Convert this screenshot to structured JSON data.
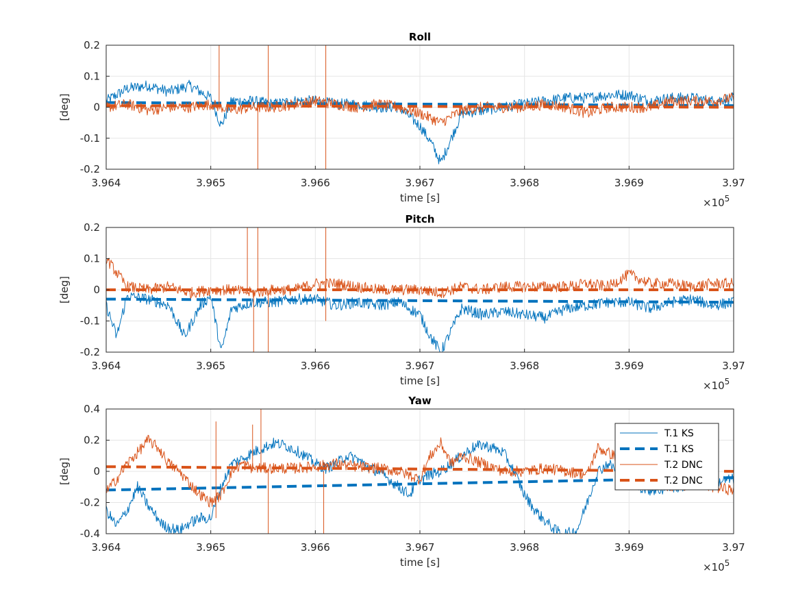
{
  "chart_data": [
    {
      "type": "line",
      "title": "Roll",
      "xlabel": "time [s]",
      "ylabel": "[deg]",
      "xlim": [
        396400,
        397000
      ],
      "ylim": [
        -0.2,
        0.2
      ],
      "x_exponent_label": "×10",
      "x_exponent_power": "5",
      "xticks": [
        396400,
        396500,
        396600,
        396700,
        396800,
        396900,
        397000
      ],
      "xtick_labels": [
        "3.964",
        "3.965",
        "3.966",
        "3.967",
        "3.968",
        "3.969",
        "3.97"
      ],
      "yticks": [
        -0.2,
        -0.1,
        0,
        0.1,
        0.2
      ],
      "ytick_labels": [
        "-0.2",
        "-0.1",
        "0",
        "0.1",
        "0.2"
      ],
      "grid": true,
      "series": [
        {
          "name": "T.1 KS",
          "style": "solid",
          "color": "#0072BD",
          "x": [
            396400,
            396420,
            396440,
            396460,
            396480,
            396500,
            396510,
            396520,
            396540,
            396560,
            396580,
            396600,
            396620,
            396640,
            396660,
            396680,
            396700,
            396710,
            396720,
            396730,
            396740,
            396760,
            396780,
            396800,
            396820,
            396840,
            396860,
            396880,
            396900,
            396920,
            396940,
            396960,
            396980,
            397000
          ],
          "values": [
            0.02,
            0.06,
            0.07,
            0.05,
            0.07,
            0.03,
            -0.06,
            0.02,
            0.02,
            0.01,
            0.02,
            0.02,
            0.01,
            0.01,
            0.0,
            0.0,
            -0.06,
            -0.11,
            -0.18,
            -0.1,
            -0.02,
            -0.01,
            0.0,
            0.01,
            0.02,
            0.03,
            0.03,
            0.04,
            0.04,
            0.02,
            0.03,
            0.03,
            0.02,
            0.03
          ]
        },
        {
          "name": "T.1 KS",
          "style": "dashed",
          "color": "#0072BD",
          "x": [
            396400,
            397000
          ],
          "values": [
            0.015,
            0.005
          ]
        },
        {
          "name": "T.2 DNC",
          "style": "solid",
          "color": "#D95319",
          "x": [
            396400,
            396420,
            396440,
            396460,
            396480,
            396500,
            396520,
            396540,
            396560,
            396580,
            396600,
            396620,
            396640,
            396660,
            396680,
            396700,
            396720,
            396740,
            396760,
            396780,
            396800,
            396820,
            396840,
            396860,
            396880,
            396900,
            396920,
            396940,
            396960,
            396980,
            397000
          ],
          "values": [
            0.0,
            0.01,
            -0.01,
            0.0,
            0.0,
            0.01,
            -0.01,
            0.0,
            0.0,
            0.01,
            0.02,
            0.01,
            0.0,
            0.01,
            0.0,
            -0.02,
            -0.05,
            -0.01,
            0.0,
            0.0,
            0.0,
            0.01,
            0.0,
            -0.02,
            0.0,
            0.0,
            0.0,
            0.02,
            0.02,
            0.02,
            0.03
          ],
          "spikes": [
            {
              "x": 396508,
              "value": 0.2
            },
            {
              "x": 396545,
              "value": -0.2
            },
            {
              "x": 396555,
              "value": 0.2
            },
            {
              "x": 396610,
              "value": 0.2
            },
            {
              "x": 396610,
              "value": -0.2
            }
          ]
        },
        {
          "name": "T.2 DNC",
          "style": "dashed",
          "color": "#D95319",
          "x": [
            396400,
            397000
          ],
          "values": [
            0.005,
            0.0
          ]
        }
      ]
    },
    {
      "type": "line",
      "title": "Pitch",
      "xlabel": "time [s]",
      "ylabel": "[deg]",
      "xlim": [
        396400,
        397000
      ],
      "ylim": [
        -0.2,
        0.2
      ],
      "x_exponent_label": "×10",
      "x_exponent_power": "5",
      "xticks": [
        396400,
        396500,
        396600,
        396700,
        396800,
        396900,
        397000
      ],
      "xtick_labels": [
        "3.964",
        "3.965",
        "3.966",
        "3.967",
        "3.968",
        "3.969",
        "3.97"
      ],
      "yticks": [
        -0.2,
        -0.1,
        0,
        0.1,
        0.2
      ],
      "ytick_labels": [
        "-0.2",
        "-0.1",
        "0",
        "0.1",
        "0.2"
      ],
      "grid": true,
      "series": [
        {
          "name": "T.1 KS",
          "style": "solid",
          "color": "#0072BD",
          "x": [
            396400,
            396410,
            396420,
            396440,
            396460,
            396475,
            396490,
            396500,
            396510,
            396520,
            396540,
            396560,
            396580,
            396600,
            396620,
            396640,
            396660,
            396680,
            396700,
            396710,
            396720,
            396740,
            396760,
            396780,
            396800,
            396820,
            396840,
            396860,
            396880,
            396900,
            396920,
            396940,
            396960,
            396980,
            397000
          ],
          "values": [
            -0.05,
            -0.15,
            -0.02,
            -0.03,
            -0.05,
            -0.15,
            -0.05,
            -0.02,
            -0.2,
            -0.06,
            -0.04,
            -0.04,
            -0.03,
            -0.03,
            -0.05,
            -0.04,
            -0.05,
            -0.04,
            -0.08,
            -0.15,
            -0.2,
            -0.06,
            -0.08,
            -0.07,
            -0.08,
            -0.09,
            -0.06,
            -0.05,
            -0.04,
            -0.04,
            -0.06,
            -0.04,
            -0.03,
            -0.05,
            -0.04
          ]
        },
        {
          "name": "T.1 KS",
          "style": "dashed",
          "color": "#0072BD",
          "x": [
            396400,
            397000
          ],
          "values": [
            -0.03,
            -0.04
          ]
        },
        {
          "name": "T.2 DNC",
          "style": "solid",
          "color": "#D95319",
          "x": [
            396400,
            396420,
            396440,
            396460,
            396480,
            396500,
            396520,
            396540,
            396560,
            396580,
            396600,
            396620,
            396640,
            396660,
            396680,
            396700,
            396720,
            396740,
            396760,
            396780,
            396800,
            396820,
            396840,
            396860,
            396880,
            396900,
            396920,
            396940,
            396960,
            396980,
            397000
          ],
          "values": [
            0.1,
            0.01,
            0.0,
            0.01,
            -0.01,
            0.0,
            0.0,
            -0.01,
            0.0,
            0.0,
            0.02,
            0.02,
            0.01,
            0.0,
            0.0,
            0.0,
            -0.01,
            0.01,
            0.0,
            0.01,
            0.01,
            0.01,
            0.01,
            0.02,
            0.01,
            0.05,
            0.02,
            0.02,
            0.01,
            0.02,
            0.02
          ],
          "spikes": [
            {
              "x": 396535,
              "value": 0.2
            },
            {
              "x": 396541,
              "value": -0.2
            },
            {
              "x": 396545,
              "value": 0.2
            },
            {
              "x": 396555,
              "value": -0.2
            },
            {
              "x": 396610,
              "value": 0.2
            },
            {
              "x": 396610,
              "value": -0.1
            }
          ]
        },
        {
          "name": "T.2 DNC",
          "style": "dashed",
          "color": "#D95319",
          "x": [
            396400,
            397000
          ],
          "values": [
            0.0,
            0.0
          ]
        }
      ]
    },
    {
      "type": "line",
      "title": "Yaw",
      "xlabel": "time [s]",
      "ylabel": "[deg]",
      "xlim": [
        396400,
        397000
      ],
      "ylim": [
        -0.4,
        0.4
      ],
      "x_exponent_label": "×10",
      "x_exponent_power": "5",
      "xticks": [
        396400,
        396500,
        396600,
        396700,
        396800,
        396900,
        397000
      ],
      "xtick_labels": [
        "3.964",
        "3.965",
        "3.966",
        "3.967",
        "3.968",
        "3.969",
        "3.97"
      ],
      "yticks": [
        -0.4,
        -0.2,
        0,
        0.2,
        0.4
      ],
      "ytick_labels": [
        "-0.4",
        "-0.2",
        "0",
        "0.2",
        "0.4"
      ],
      "grid": true,
      "legend_position": "top-right",
      "series": [
        {
          "name": "T.1 KS",
          "style": "solid",
          "color": "#0072BD",
          "x": [
            396400,
            396410,
            396420,
            396430,
            396440,
            396455,
            396470,
            396480,
            396490,
            396500,
            396510,
            396520,
            396530,
            396540,
            396550,
            396560,
            396570,
            396580,
            396590,
            396600,
            396610,
            396620,
            396630,
            396640,
            396650,
            396660,
            396670,
            396680,
            396690,
            396700,
            396710,
            396720,
            396730,
            396740,
            396750,
            396760,
            396770,
            396780,
            396790,
            396800,
            396810,
            396820,
            396830,
            396840,
            396850,
            396860,
            396870,
            396880,
            396890,
            396900,
            396910,
            396920,
            396930,
            396940,
            396950,
            396960,
            396970,
            396980,
            396990,
            397000
          ],
          "values": [
            -0.25,
            -0.35,
            -0.25,
            -0.1,
            -0.22,
            -0.35,
            -0.38,
            -0.33,
            -0.3,
            -0.3,
            -0.1,
            0.05,
            0.08,
            0.12,
            0.15,
            0.18,
            0.17,
            0.14,
            0.1,
            0.05,
            0.02,
            0.05,
            0.1,
            0.08,
            0.03,
            0.0,
            -0.05,
            -0.1,
            -0.15,
            -0.05,
            -0.02,
            0.0,
            0.05,
            0.1,
            0.15,
            0.17,
            0.15,
            0.12,
            0.0,
            -0.15,
            -0.25,
            -0.32,
            -0.38,
            -0.4,
            -0.38,
            -0.2,
            0.0,
            0.05,
            0.0,
            -0.05,
            -0.1,
            -0.12,
            -0.12,
            -0.1,
            -0.1,
            -0.08,
            -0.08,
            -0.07,
            -0.06,
            -0.05
          ]
        },
        {
          "name": "T.1 KS",
          "style": "dashed",
          "color": "#0072BD",
          "x": [
            396400,
            397000
          ],
          "values": [
            -0.12,
            -0.04
          ]
        },
        {
          "name": "T.2 DNC",
          "style": "solid",
          "color": "#D95319",
          "x": [
            396400,
            396410,
            396420,
            396430,
            396440,
            396450,
            396460,
            396470,
            396480,
            396490,
            396500,
            396510,
            396520,
            396530,
            396540,
            396560,
            396580,
            396600,
            396620,
            396640,
            396660,
            396680,
            396700,
            396710,
            396720,
            396730,
            396740,
            396760,
            396780,
            396800,
            396820,
            396840,
            396860,
            396870,
            396880,
            396900,
            396920,
            396940,
            396960,
            396980,
            397000
          ],
          "values": [
            -0.13,
            -0.05,
            0.05,
            0.12,
            0.2,
            0.15,
            0.05,
            0.0,
            -0.08,
            -0.15,
            -0.2,
            -0.15,
            0.0,
            0.05,
            0.02,
            0.02,
            0.02,
            0.03,
            0.05,
            0.03,
            0.02,
            0.0,
            -0.05,
            0.1,
            0.18,
            0.05,
            0.1,
            0.05,
            0.0,
            0.0,
            0.02,
            0.0,
            -0.02,
            0.15,
            0.12,
            0.05,
            -0.05,
            -0.1,
            -0.08,
            -0.1,
            -0.12
          ],
          "spikes": [
            {
              "x": 396505,
              "value": 0.32
            },
            {
              "x": 396505,
              "value": -0.3
            },
            {
              "x": 396540,
              "value": 0.3
            },
            {
              "x": 396548,
              "value": 0.4
            },
            {
              "x": 396555,
              "value": -0.4
            },
            {
              "x": 396608,
              "value": -0.4
            }
          ]
        },
        {
          "name": "T.2 DNC",
          "style": "dashed",
          "color": "#D95319",
          "x": [
            396400,
            397000
          ],
          "values": [
            0.03,
            0.0
          ]
        }
      ]
    }
  ],
  "legend": {
    "entries": [
      {
        "label": "T.1 KS",
        "style": "solid",
        "color": "#0072BD"
      },
      {
        "label": "T.1 KS",
        "style": "dashed",
        "color": "#0072BD"
      },
      {
        "label": "T.2 DNC",
        "style": "solid",
        "color": "#D95319"
      },
      {
        "label": "T.2 DNC",
        "style": "dashed",
        "color": "#D95319"
      }
    ]
  }
}
